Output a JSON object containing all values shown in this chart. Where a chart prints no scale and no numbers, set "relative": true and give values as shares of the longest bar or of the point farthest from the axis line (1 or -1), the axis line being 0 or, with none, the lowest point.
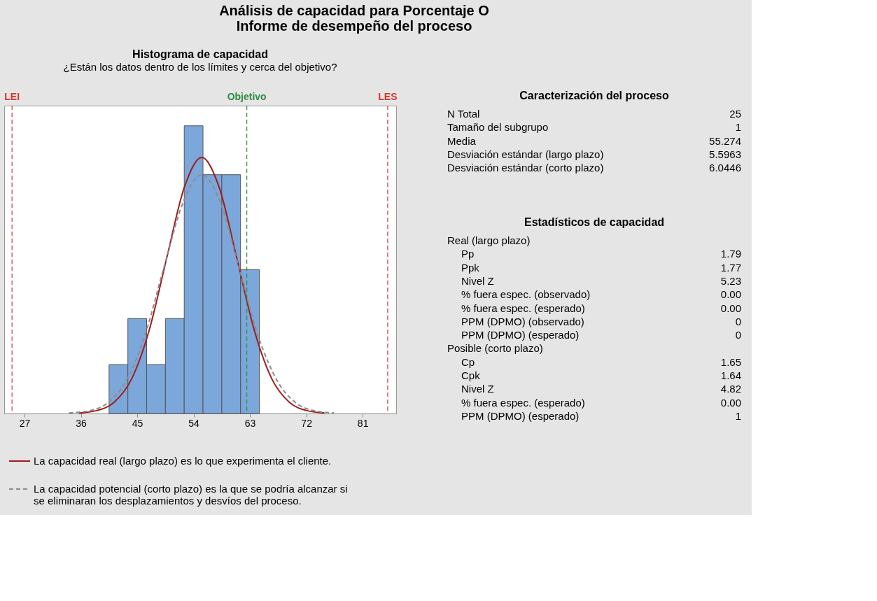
{
  "chart_data": [
    {
      "type": "other",
      "title": "Análisis de capacidad para Porcentaje O",
      "subtitle": "Informe de desempeño del proceso"
    },
    {
      "type": "histogram",
      "title": "Histograma de capacidad",
      "subtitle": "¿Están los datos dentro de los límites y cerca del objetivo?",
      "relative": true,
      "bins": [
        40.5,
        43.5,
        46.5,
        49.5,
        52.5,
        55.5,
        58.5,
        61.5,
        64.5
      ],
      "values": [
        0.17,
        0.33,
        0.17,
        0.33,
        1,
        0.83,
        0.83,
        0.5
      ],
      "color": "#7ba7db",
      "xlim": [
        23.75,
        86.35
      ],
      "xticks": [
        27,
        36,
        45,
        54,
        63,
        72,
        81
      ],
      "legend": "bottom",
      "series": [
        {
          "name": "La capacidad real (largo plazo) es lo que experimenta el cliente.",
          "type": "line",
          "color": "#a01c1c",
          "line_style": "solid",
          "x": [
            35.7,
            38.5,
            41.3,
            44.1,
            46.9,
            49.7,
            52.5,
            55.3,
            58.1,
            60.9,
            63.7,
            66.5,
            69.3,
            72.1,
            74.9
          ],
          "values": [
            0.002,
            0.01,
            0.039,
            0.12,
            0.289,
            0.54,
            0.785,
            0.89,
            0.785,
            0.54,
            0.289,
            0.12,
            0.039,
            0.01,
            0.002
          ]
        },
        {
          "name": "La capacidad potencial (corto plazo) es la que se podría alcanzar si se eliminaran los desplazamientos y desvíos del proceso.",
          "type": "line",
          "color": "#8c8c8c",
          "line_style": "dashed",
          "x": [
            34.1,
            37.2,
            40.2,
            43.2,
            46.2,
            49.2,
            52.3,
            55.3,
            58.3,
            61.3,
            64.3,
            67.4,
            70.4,
            73.4,
            76.4
          ],
          "values": [
            0.002,
            0.009,
            0.036,
            0.112,
            0.27,
            0.503,
            0.732,
            0.83,
            0.732,
            0.503,
            0.27,
            0.112,
            0.036,
            0.009,
            0.002
          ]
        }
      ],
      "ref_lines": [
        {
          "axis": "x",
          "value": 25,
          "label": "LEI",
          "color": "#d9342b",
          "line_style": "dashed"
        },
        {
          "axis": "x",
          "value": 62.5,
          "label": "Objetivo",
          "color": "#2e8b3e",
          "line_style": "dashed"
        },
        {
          "axis": "x",
          "value": 85,
          "label": "LES",
          "color": "#d9342b",
          "line_style": "dashed"
        }
      ]
    },
    {
      "type": "other",
      "title": "Caracterización del proceso",
      "categories": [
        "N Total",
        "Tamaño del subgrupo",
        "Media",
        "Desviación estándar (largo plazo)",
        "Desviación estándar (corto plazo)"
      ],
      "value_labels": [
        "25",
        "1",
        "55.274",
        "5.5963",
        "6.0446"
      ]
    },
    {
      "type": "other",
      "title": "Estadísticos de capacidad",
      "categories": [
        "Real (largo plazo)",
        "Pp",
        "Ppk",
        "Nivel Z",
        "% fuera espec. (observado)",
        "% fuera espec. (esperado)",
        "PPM (DPMO) (observado)",
        "PPM (DPMO) (esperado)",
        "Posible (corto plazo)",
        "Cp",
        "Cpk",
        "Nivel Z",
        "% fuera espec. (esperado)",
        "PPM (DPMO) (esperado)"
      ],
      "value_labels": [
        null,
        "1.79",
        "1.77",
        "5.23",
        "0.00",
        "0.00",
        "0",
        "0",
        null,
        "1.65",
        "1.64",
        "4.82",
        "0.00",
        "1"
      ]
    }
  ]
}
